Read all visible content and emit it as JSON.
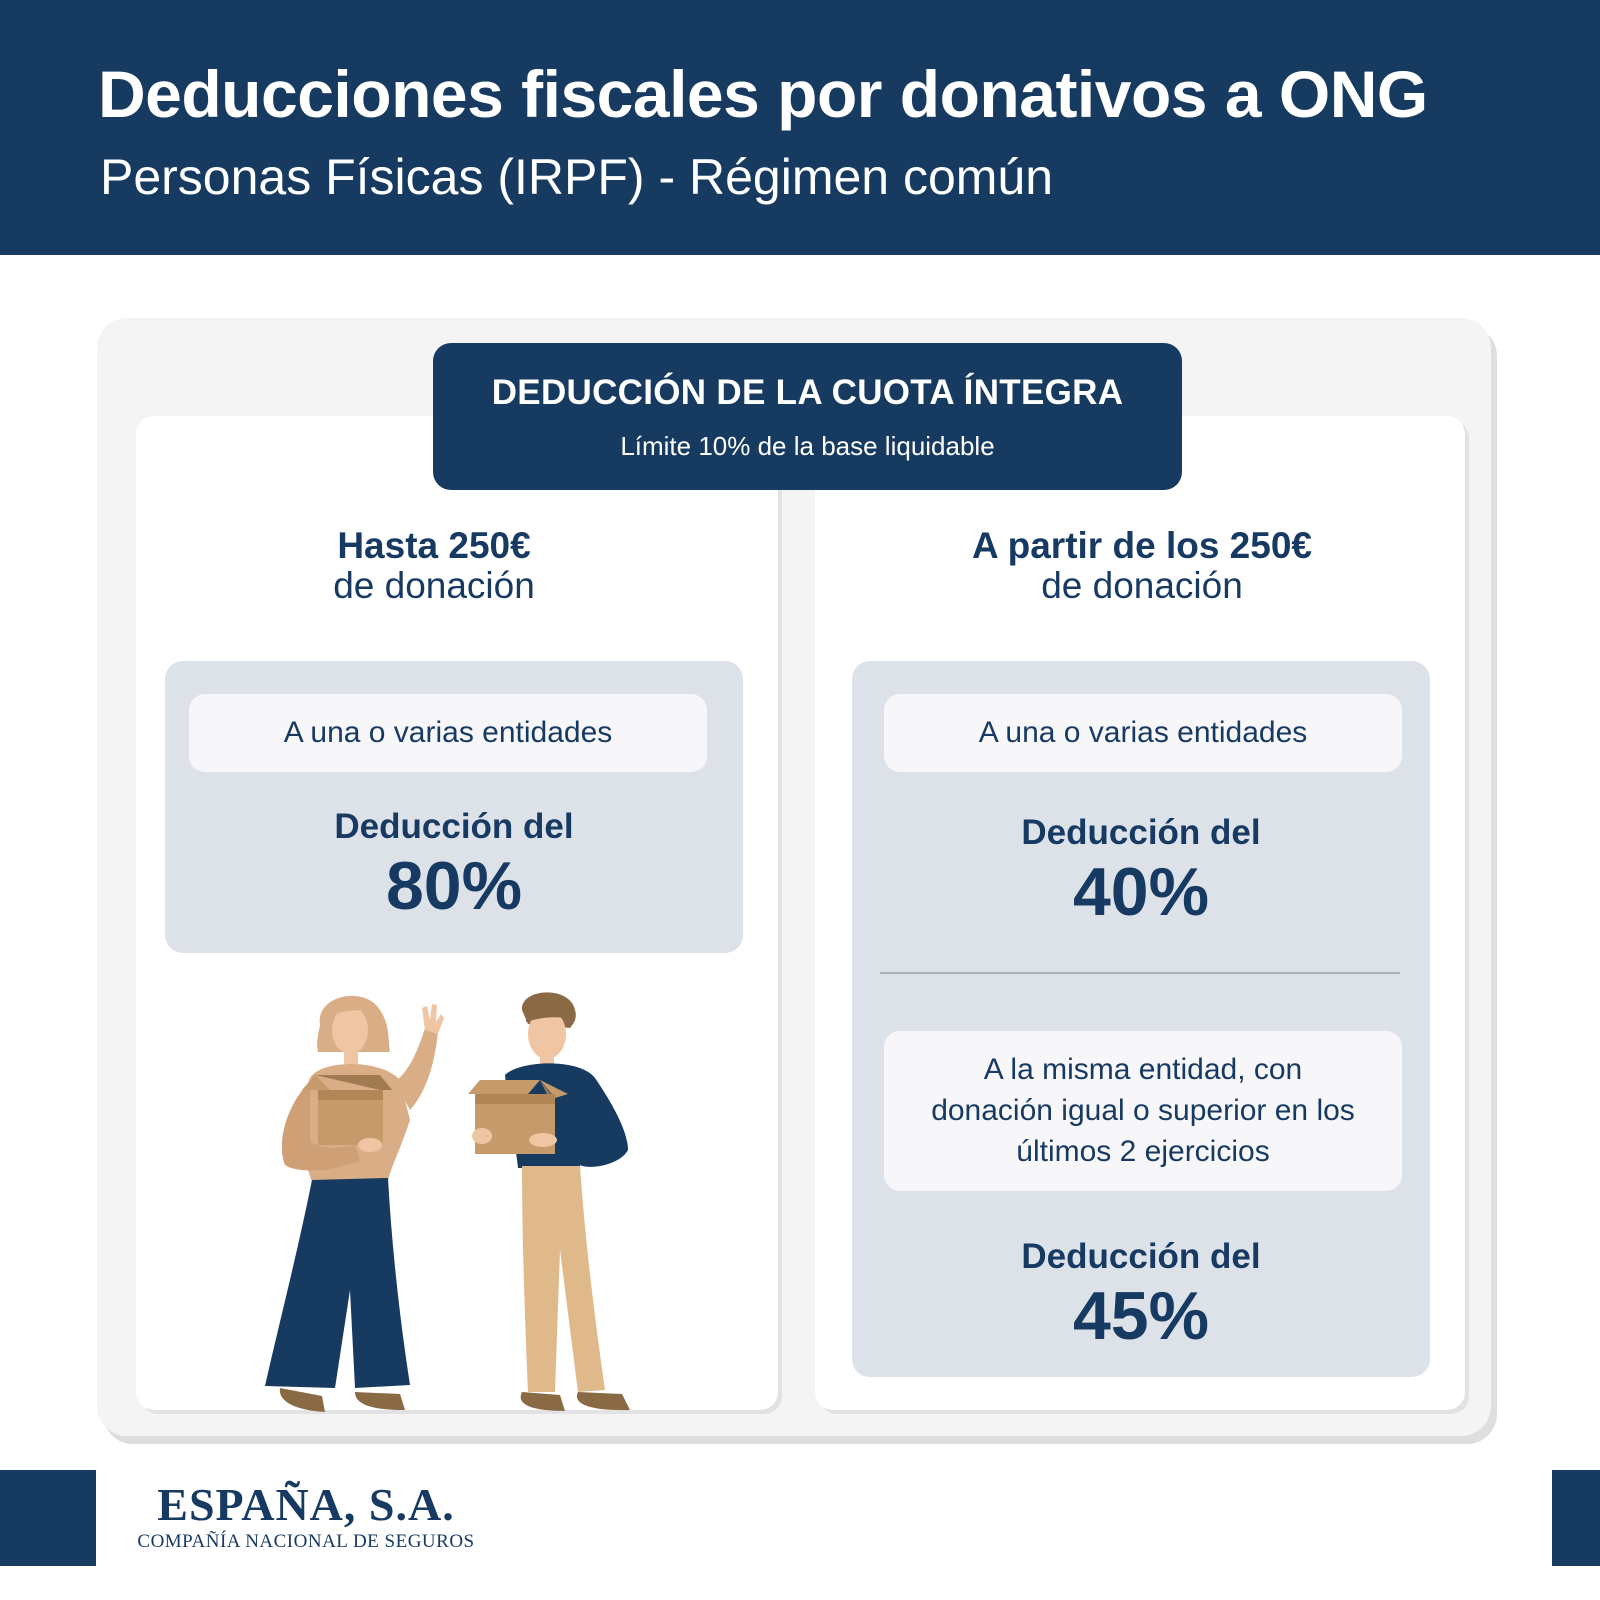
{
  "header": {
    "title": "Deducciones fiscales por donativos a ONG",
    "subtitle": "Personas Físicas (IRPF) - Régimen común"
  },
  "badge": {
    "title": "DEDUCCIÓN DE LA CUOTA ÍNTEGRA",
    "subtitle": "Límite 10% de la base liquidable"
  },
  "left": {
    "heading_bold": "Hasta 250€",
    "heading_regular": "de donación",
    "condition": "A una o varias entidades",
    "deduction_label": "Deducción del",
    "deduction_value": "80%"
  },
  "right": {
    "heading_bold": "A partir de los 250€",
    "heading_regular": "de donación",
    "condition_1": "A una o varias entidades",
    "deduction_label_1": "Deducción del",
    "deduction_value_1": "40%",
    "condition_2_lines": [
      "A la misma entidad, con",
      "donación igual o superior en los",
      "últimos 2 ejercicios"
    ],
    "deduction_label_2": "Deducción del",
    "deduction_value_2": "45%"
  },
  "footer": {
    "logo_name": "ESPAÑA, S.A.",
    "logo_tagline": "COMPAÑÍA NACIONAL DE SEGUROS"
  },
  "colors": {
    "navy": "#163a60",
    "panel_grey": "#dde2e9",
    "pill_white": "#f7f7f9",
    "beige": "#d9ae86",
    "box_brown": "#b98e62"
  },
  "illustration": {
    "icon": "people-carrying-donation-boxes-illustration"
  }
}
